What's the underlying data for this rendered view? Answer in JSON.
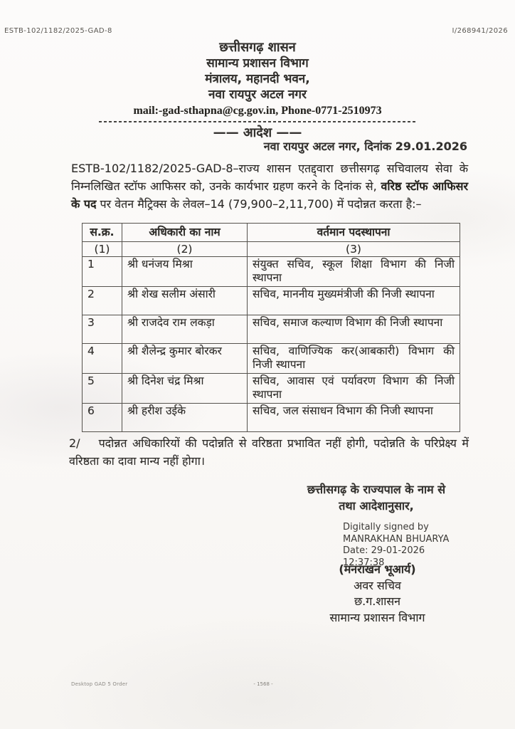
{
  "refs": {
    "left": "ESTB-102/1182/2025-GAD-8",
    "right": "I/268941/2026"
  },
  "letterhead": {
    "government": "छत्तीसगढ़ शासन",
    "department": "सामान्य प्रशासन विभाग",
    "address_line1": "मंत्रालय, महानदी भवन,",
    "address_line2": "नवा रायपुर अटल नगर",
    "contact": "mail:-gad-sthapna@cg.gov.in, Phone-0771-2510973",
    "order_title": "—— आदेश ——"
  },
  "dateline": "नवा रायपुर अटल नगर, दिनांक 29.01.2026",
  "body": {
    "para1_a": "ESTB-102/1182/2025-GAD-8–राज्य शासन एतद्द्वारा छत्तीसगढ़ सचिवालय सेवा के निम्नलिखित स्टॉफ आफिसर को, उनके कार्यभार ग्रहण करने के दिनांक से, ",
    "para1_bold": "वरिष्ठ स्टॉफ आफिसर के पद",
    "para1_c": " पर वेतन मैट्रिक्स के लेवल–14 (79,900–2,11,700) में पदोन्नत करता है:–",
    "para2_num": "2/",
    "para2_text": "पदोन्नत अधिकारियों की पदोन्नति से वरिष्ठता प्रभावित नहीं होगी, पदोन्नति के परिप्रेक्ष्य में वरिष्ठता का दावा मान्य नहीं होगा।"
  },
  "table": {
    "headers": {
      "sn": "स.क्र.",
      "name": "अधिकारी का नाम",
      "posting": "वर्तमान पदस्थापना"
    },
    "col_numbers": {
      "c1": "(1)",
      "c2": "(2)",
      "c3": "(3)"
    },
    "rows": [
      {
        "sn": "1",
        "name": "श्री धनंजय मिश्रा",
        "posting": "संयुक्त सचिव, स्कूल शिक्षा विभाग की निजी स्थापना"
      },
      {
        "sn": "2",
        "name": "श्री शेख सलीम अंसारी",
        "posting": "सचिव, माननीय मुख्यमंत्रीजी की निजी स्थापना"
      },
      {
        "sn": "3",
        "name": "श्री राजदेव राम लकड़ा",
        "posting": "सचिव, समाज कल्याण विभाग की निजी स्थापना"
      },
      {
        "sn": "4",
        "name": "श्री शैलेन्द्र कुमार बोरकर",
        "posting": "सचिव, वाणिज्यिक कर(आबकारी) विभाग की निजी स्थापना"
      },
      {
        "sn": "5",
        "name": "श्री दिनेश चंद्र मिश्रा",
        "posting": "सचिव, आवास एवं पर्यावरण विभाग की निजी स्थापना"
      },
      {
        "sn": "6",
        "name": "श्री हरीश उईके",
        "posting": "सचिव, जल संसाधन विभाग की निजी स्थापना"
      }
    ]
  },
  "signoff": {
    "by_order_line1": "छत्तीसगढ़ के राज्यपाल के नाम से",
    "by_order_line2": "तथा आदेशानुसार,",
    "digital_signature": {
      "line1": "Digitally signed by",
      "line2": "MANRAKHAN BHUARYA",
      "line3": "Date: 29-01-2026",
      "line4": "12:37:38"
    },
    "signer_name": "(मनराखन भूआर्य)",
    "designation": "अवर सचिव",
    "government_abbr": "छ.ग.शासन",
    "department": "सामान्य प्रशासन विभाग"
  },
  "footer": {
    "left_note": "Desktop GAD 5 Order",
    "page_number": "- 1568 -"
  }
}
